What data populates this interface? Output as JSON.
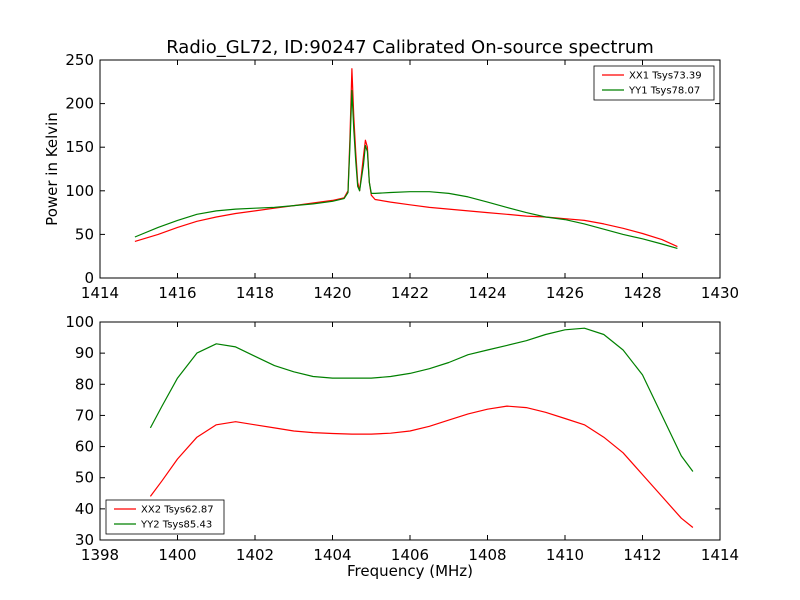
{
  "chart_data": [
    {
      "type": "line",
      "title": "Radio_GL72, ID:90247 Calibrated On-source spectrum",
      "xlabel": "",
      "ylabel": "Power in Kelvin",
      "xlim": [
        1414,
        1430
      ],
      "ylim": [
        0,
        250
      ],
      "xticks": [
        "1414",
        "1416",
        "1418",
        "1420",
        "1422",
        "1424",
        "1426",
        "1428",
        "1430"
      ],
      "yticks": [
        "0",
        "50",
        "100",
        "150",
        "200",
        "250"
      ],
      "legend_position": "top-right",
      "grid": false,
      "series": [
        {
          "name": "XX1 Tsys73.39",
          "color": "#ff0000",
          "x": [
            1414.9,
            1415.5,
            1416.0,
            1416.5,
            1417.0,
            1417.5,
            1418.0,
            1418.5,
            1419.0,
            1419.5,
            1420.0,
            1420.3,
            1420.4,
            1420.45,
            1420.5,
            1420.55,
            1420.6,
            1420.65,
            1420.7,
            1420.8,
            1420.85,
            1420.9,
            1420.95,
            1421.0,
            1421.1,
            1421.5,
            1422.0,
            1422.5,
            1423.0,
            1423.5,
            1424.0,
            1424.5,
            1425.0,
            1425.5,
            1426.0,
            1426.5,
            1427.0,
            1427.5,
            1428.0,
            1428.5,
            1428.9
          ],
          "y": [
            42,
            50,
            58,
            65,
            70,
            74,
            77,
            80,
            83,
            86,
            89,
            92,
            100,
            160,
            240,
            185,
            145,
            110,
            100,
            140,
            158,
            150,
            110,
            95,
            90,
            87,
            84,
            81,
            79,
            77,
            75,
            73,
            71,
            70,
            68,
            66,
            62,
            57,
            51,
            44,
            36
          ]
        },
        {
          "name": "YY1 Tsys78.07",
          "color": "#008000",
          "x": [
            1414.9,
            1415.5,
            1416.0,
            1416.5,
            1417.0,
            1417.5,
            1418.0,
            1418.5,
            1419.0,
            1419.5,
            1420.0,
            1420.3,
            1420.4,
            1420.45,
            1420.5,
            1420.55,
            1420.6,
            1420.65,
            1420.7,
            1420.8,
            1420.85,
            1420.9,
            1420.95,
            1421.0,
            1421.1,
            1421.5,
            1422.0,
            1422.5,
            1423.0,
            1423.5,
            1424.0,
            1424.5,
            1425.0,
            1425.5,
            1426.0,
            1426.5,
            1427.0,
            1427.5,
            1428.0,
            1428.5,
            1428.9
          ],
          "y": [
            47,
            58,
            66,
            73,
            77,
            79,
            80,
            81,
            83,
            85,
            88,
            91,
            98,
            150,
            215,
            170,
            135,
            105,
            100,
            130,
            152,
            145,
            110,
            97,
            97,
            98,
            99,
            99,
            97,
            93,
            87,
            81,
            75,
            70,
            67,
            62,
            56,
            50,
            45,
            39,
            34
          ]
        }
      ]
    },
    {
      "type": "line",
      "title": "",
      "xlabel": "Frequency (MHz)",
      "ylabel": "",
      "xlim": [
        1398,
        1414
      ],
      "ylim": [
        30,
        100
      ],
      "xticks": [
        "1398",
        "1400",
        "1402",
        "1404",
        "1406",
        "1408",
        "1410",
        "1412",
        "1414"
      ],
      "yticks": [
        "30",
        "40",
        "50",
        "60",
        "70",
        "80",
        "90",
        "100"
      ],
      "legend_position": "bottom-left",
      "grid": false,
      "series": [
        {
          "name": "XX2 Tsys62.87",
          "color": "#ff0000",
          "x": [
            1399.3,
            1399.6,
            1400.0,
            1400.5,
            1401.0,
            1401.5,
            1402.0,
            1402.5,
            1403.0,
            1403.5,
            1404.0,
            1404.5,
            1405.0,
            1405.5,
            1406.0,
            1406.5,
            1407.0,
            1407.5,
            1408.0,
            1408.5,
            1409.0,
            1409.5,
            1410.0,
            1410.5,
            1411.0,
            1411.5,
            1412.0,
            1412.5,
            1413.0,
            1413.3
          ],
          "y": [
            44,
            49,
            56,
            63,
            67,
            68,
            67,
            66,
            65,
            64.5,
            64.2,
            64,
            64,
            64.3,
            65,
            66.5,
            68.5,
            70.5,
            72,
            73,
            72.5,
            71,
            69,
            67,
            63,
            58,
            51,
            44,
            37,
            34
          ]
        },
        {
          "name": "YY2 Tsys85.43",
          "color": "#008000",
          "x": [
            1399.3,
            1399.6,
            1400.0,
            1400.5,
            1401.0,
            1401.5,
            1402.0,
            1402.5,
            1403.0,
            1403.5,
            1404.0,
            1404.5,
            1405.0,
            1405.5,
            1406.0,
            1406.5,
            1407.0,
            1407.5,
            1408.0,
            1408.5,
            1409.0,
            1409.5,
            1410.0,
            1410.5,
            1411.0,
            1411.5,
            1412.0,
            1412.5,
            1413.0,
            1413.3
          ],
          "y": [
            66,
            73,
            82,
            90,
            93,
            92,
            89,
            86,
            84,
            82.5,
            82,
            82,
            82,
            82.5,
            83.5,
            85,
            87,
            89.5,
            91,
            92.5,
            94,
            96,
            97.5,
            98,
            96,
            91,
            83,
            70,
            57,
            52
          ]
        }
      ]
    }
  ]
}
